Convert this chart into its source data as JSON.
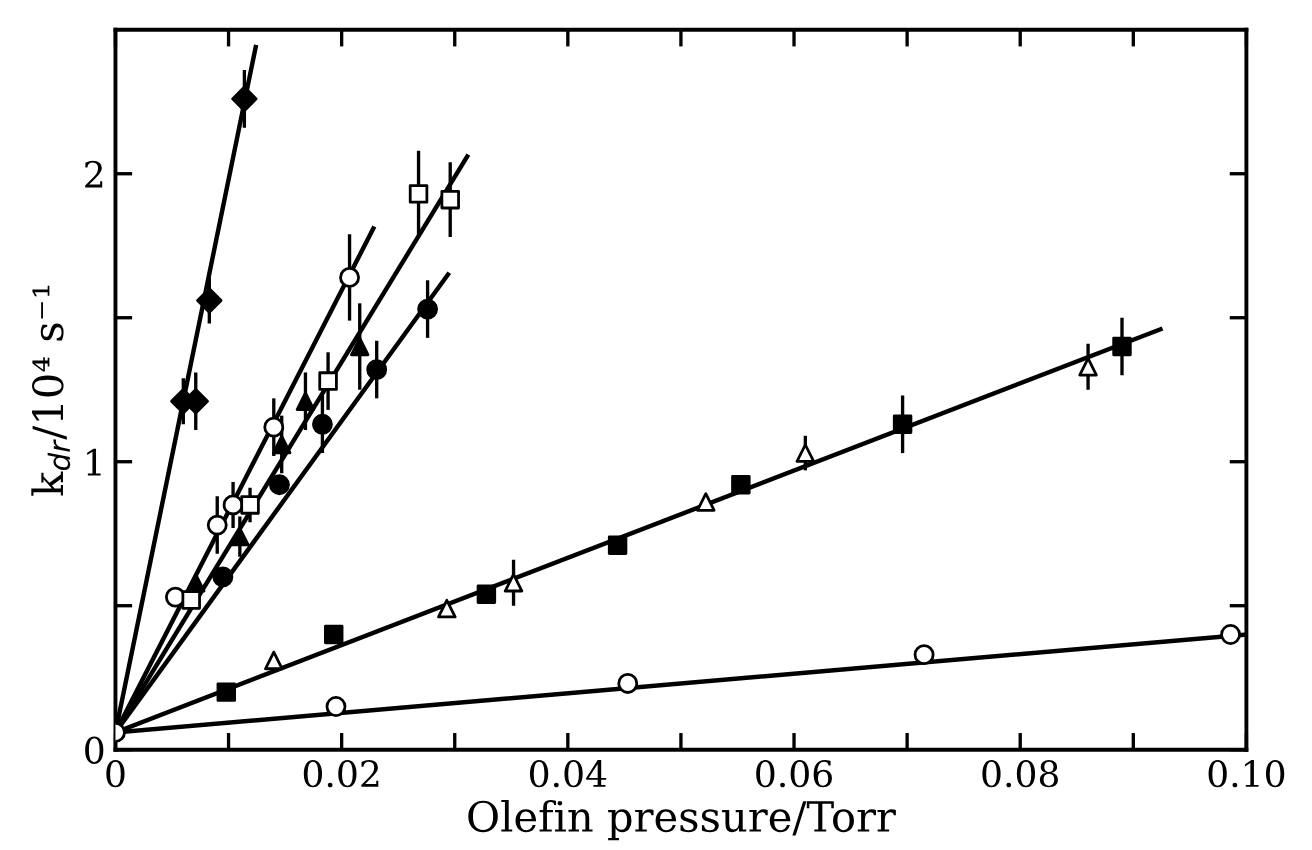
{
  "chart_data": {
    "type": "scatter",
    "xlabel": "Olefin pressure/Torr",
    "ylabel": "k$_{dr}$/10⁴ s⁻¹",
    "xlim": [
      0,
      0.1
    ],
    "ylim": [
      0,
      2.5
    ],
    "xticks": [
      0,
      {
        "value": 0.01,
        "label": null
      },
      {
        "value": 0.02,
        "label": "0.02"
      },
      {
        "value": 0.03,
        "label": null
      },
      {
        "value": 0.04,
        "label": "0.04"
      },
      {
        "value": 0.05,
        "label": null
      },
      {
        "value": 0.06,
        "label": "0.06"
      },
      {
        "value": 0.07,
        "label": null
      },
      {
        "value": 0.08,
        "label": "0.08"
      },
      {
        "value": 0.09,
        "label": null
      },
      {
        "value": 0.1,
        "label": "0.10"
      }
    ],
    "yticks": [
      0,
      {
        "value": 0.5,
        "label": null
      },
      1,
      {
        "value": 1.5,
        "label": null
      },
      2
    ],
    "grid": false,
    "legend": false,
    "series": [
      {
        "marker": "diamond",
        "color": "#000000",
        "x": [
          0.006,
          0.0071,
          0.0083,
          0.0114
        ],
        "values": [
          1.21,
          1.21,
          1.56,
          2.26
        ],
        "errors": [
          0.08,
          0.1,
          0.08,
          0.1
        ]
      },
      {
        "marker": "circle",
        "color": "#ffffff",
        "x": [
          0.0053,
          0.009,
          0.0104,
          0.014,
          0.0207
        ],
        "values": [
          0.53,
          0.78,
          0.85,
          1.12,
          1.64
        ],
        "errors": [
          null,
          0.1,
          0.08,
          0.1,
          0.15
        ]
      },
      {
        "marker": "square",
        "color": "#ffffff",
        "x": [
          0.0067,
          0.0119,
          0.0188,
          0.0268,
          0.0296
        ],
        "values": [
          0.52,
          0.85,
          1.28,
          1.93,
          1.91
        ],
        "errors": [
          null,
          0.06,
          0.1,
          0.15,
          0.13
        ]
      },
      {
        "marker": "triangle",
        "color": "#000000",
        "x": [
          0.0071,
          0.011,
          0.0147,
          0.0168,
          0.0216
        ],
        "values": [
          0.58,
          0.74,
          1.06,
          1.21,
          1.4
        ],
        "errors": [
          null,
          0.07,
          0.1,
          0.1,
          0.15
        ]
      },
      {
        "marker": "circle",
        "color": "#000000",
        "x": [
          0.0095,
          0.0145,
          0.0183,
          0.0231,
          0.0276
        ],
        "values": [
          0.6,
          0.92,
          1.13,
          1.32,
          1.53
        ],
        "errors": [
          null,
          null,
          0.1,
          0.1,
          0.1
        ]
      },
      {
        "marker": "square",
        "color": "#000000",
        "x": [
          0.0098,
          0.0193,
          0.0328,
          0.0444,
          0.0553,
          0.0696,
          0.089
        ],
        "values": [
          0.2,
          0.4,
          0.54,
          0.71,
          0.92,
          1.13,
          1.4
        ],
        "errors": [
          null,
          null,
          null,
          null,
          null,
          0.1,
          0.1
        ]
      },
      {
        "marker": "triangle",
        "color": "#ffffff",
        "x": [
          0.014,
          0.0293,
          0.0352,
          0.0522,
          0.061,
          0.086
        ],
        "values": [
          0.31,
          0.49,
          0.58,
          0.86,
          1.03,
          1.33
        ],
        "errors": [
          null,
          null,
          0.08,
          null,
          0.06,
          0.08
        ]
      },
      {
        "marker": "circle",
        "color": "#ffffff",
        "x": [
          0,
          0.0195,
          0.0453,
          0.0715,
          0.0986
        ],
        "values": [
          0.06,
          0.15,
          0.23,
          0.33,
          0.4
        ]
      },
      {
        "type": "line",
        "marker": "none",
        "color": "#000000",
        "x": [
          0,
          0.0124
        ],
        "values": [
          0.06,
          2.44
        ]
      },
      {
        "type": "line",
        "marker": "none",
        "color": "#000000",
        "x": [
          0,
          0.0228
        ],
        "values": [
          0.06,
          1.81
        ]
      },
      {
        "type": "line",
        "marker": "none",
        "color": "#000000",
        "x": [
          0,
          0.0311
        ],
        "values": [
          0.06,
          2.06
        ]
      },
      {
        "type": "line",
        "marker": "none",
        "color": "#000000",
        "x": [
          0,
          0.0294
        ],
        "values": [
          0.06,
          1.65
        ]
      },
      {
        "type": "line",
        "marker": "none",
        "color": "#000000",
        "x": [
          0,
          0.0924
        ],
        "values": [
          0.06,
          1.46
        ]
      },
      {
        "type": "line",
        "marker": "none",
        "color": "#000000",
        "x": [
          0,
          0.1
        ],
        "values": [
          0.06,
          0.4
        ]
      }
    ]
  }
}
